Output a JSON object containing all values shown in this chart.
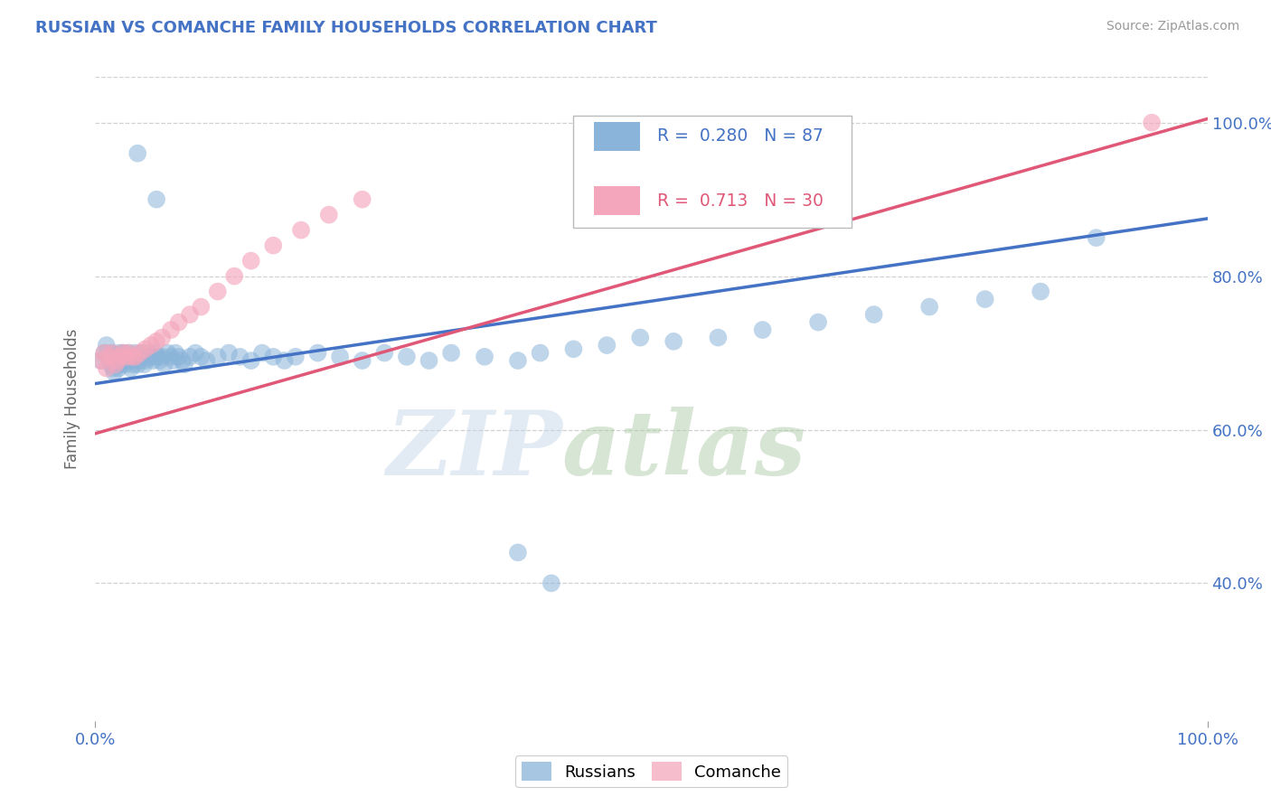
{
  "title": "RUSSIAN VS COMANCHE FAMILY HOUSEHOLDS CORRELATION CHART",
  "source": "Source: ZipAtlas.com",
  "ylabel": "Family Households",
  "xlim": [
    0.0,
    1.0
  ],
  "ylim": [
    0.22,
    1.06
  ],
  "y_ticks": [
    0.4,
    0.6,
    0.8,
    1.0
  ],
  "y_tick_labels": [
    "40.0%",
    "60.0%",
    "80.0%",
    "100.0%"
  ],
  "x_tick_labels": [
    "0.0%",
    "100.0%"
  ],
  "russian_color": "#8ab4d9",
  "comanche_color": "#f4a7bc",
  "russian_line_color": "#4472c4",
  "comanche_line_color": "#e05878",
  "watermark_zip": "ZIP",
  "watermark_atlas": "atlas",
  "background_color": "#ffffff",
  "grid_color": "#cccccc",
  "russians_x": [
    0.005,
    0.008,
    0.01,
    0.012,
    0.014,
    0.015,
    0.016,
    0.017,
    0.018,
    0.019,
    0.02,
    0.021,
    0.022,
    0.023,
    0.024,
    0.025,
    0.026,
    0.027,
    0.028,
    0.03,
    0.031,
    0.032,
    0.033,
    0.034,
    0.035,
    0.036,
    0.038,
    0.039,
    0.04,
    0.042,
    0.043,
    0.044,
    0.045,
    0.046,
    0.048,
    0.05,
    0.052,
    0.054,
    0.056,
    0.058,
    0.06,
    0.062,
    0.065,
    0.068,
    0.07,
    0.072,
    0.075,
    0.078,
    0.08,
    0.085,
    0.09,
    0.095,
    0.1,
    0.11,
    0.12,
    0.13,
    0.14,
    0.15,
    0.16,
    0.17,
    0.18,
    0.2,
    0.22,
    0.24,
    0.26,
    0.28,
    0.3,
    0.32,
    0.35,
    0.38,
    0.4,
    0.43,
    0.46,
    0.49,
    0.52,
    0.56,
    0.6,
    0.65,
    0.7,
    0.75,
    0.8,
    0.85,
    0.9,
    0.038,
    0.055,
    0.38,
    0.41
  ],
  "russians_y": [
    0.69,
    0.7,
    0.71,
    0.695,
    0.685,
    0.7,
    0.68,
    0.675,
    0.695,
    0.685,
    0.69,
    0.68,
    0.7,
    0.685,
    0.695,
    0.7,
    0.69,
    0.685,
    0.695,
    0.7,
    0.69,
    0.68,
    0.695,
    0.685,
    0.69,
    0.7,
    0.685,
    0.695,
    0.69,
    0.7,
    0.695,
    0.685,
    0.69,
    0.695,
    0.7,
    0.695,
    0.69,
    0.7,
    0.695,
    0.69,
    0.695,
    0.685,
    0.7,
    0.695,
    0.69,
    0.7,
    0.695,
    0.69,
    0.685,
    0.695,
    0.7,
    0.695,
    0.69,
    0.695,
    0.7,
    0.695,
    0.69,
    0.7,
    0.695,
    0.69,
    0.695,
    0.7,
    0.695,
    0.69,
    0.7,
    0.695,
    0.69,
    0.7,
    0.695,
    0.69,
    0.7,
    0.705,
    0.71,
    0.72,
    0.715,
    0.72,
    0.73,
    0.74,
    0.75,
    0.76,
    0.77,
    0.78,
    0.85,
    0.96,
    0.9,
    0.44,
    0.4
  ],
  "comanche_x": [
    0.005,
    0.008,
    0.01,
    0.012,
    0.015,
    0.018,
    0.02,
    0.022,
    0.025,
    0.028,
    0.03,
    0.033,
    0.036,
    0.04,
    0.045,
    0.05,
    0.055,
    0.06,
    0.068,
    0.075,
    0.085,
    0.095,
    0.11,
    0.125,
    0.14,
    0.16,
    0.185,
    0.21,
    0.24,
    0.95
  ],
  "comanche_y": [
    0.69,
    0.7,
    0.68,
    0.695,
    0.7,
    0.685,
    0.69,
    0.695,
    0.7,
    0.695,
    0.7,
    0.695,
    0.695,
    0.7,
    0.705,
    0.71,
    0.715,
    0.72,
    0.73,
    0.74,
    0.75,
    0.76,
    0.78,
    0.8,
    0.82,
    0.84,
    0.86,
    0.88,
    0.9,
    1.0
  ]
}
